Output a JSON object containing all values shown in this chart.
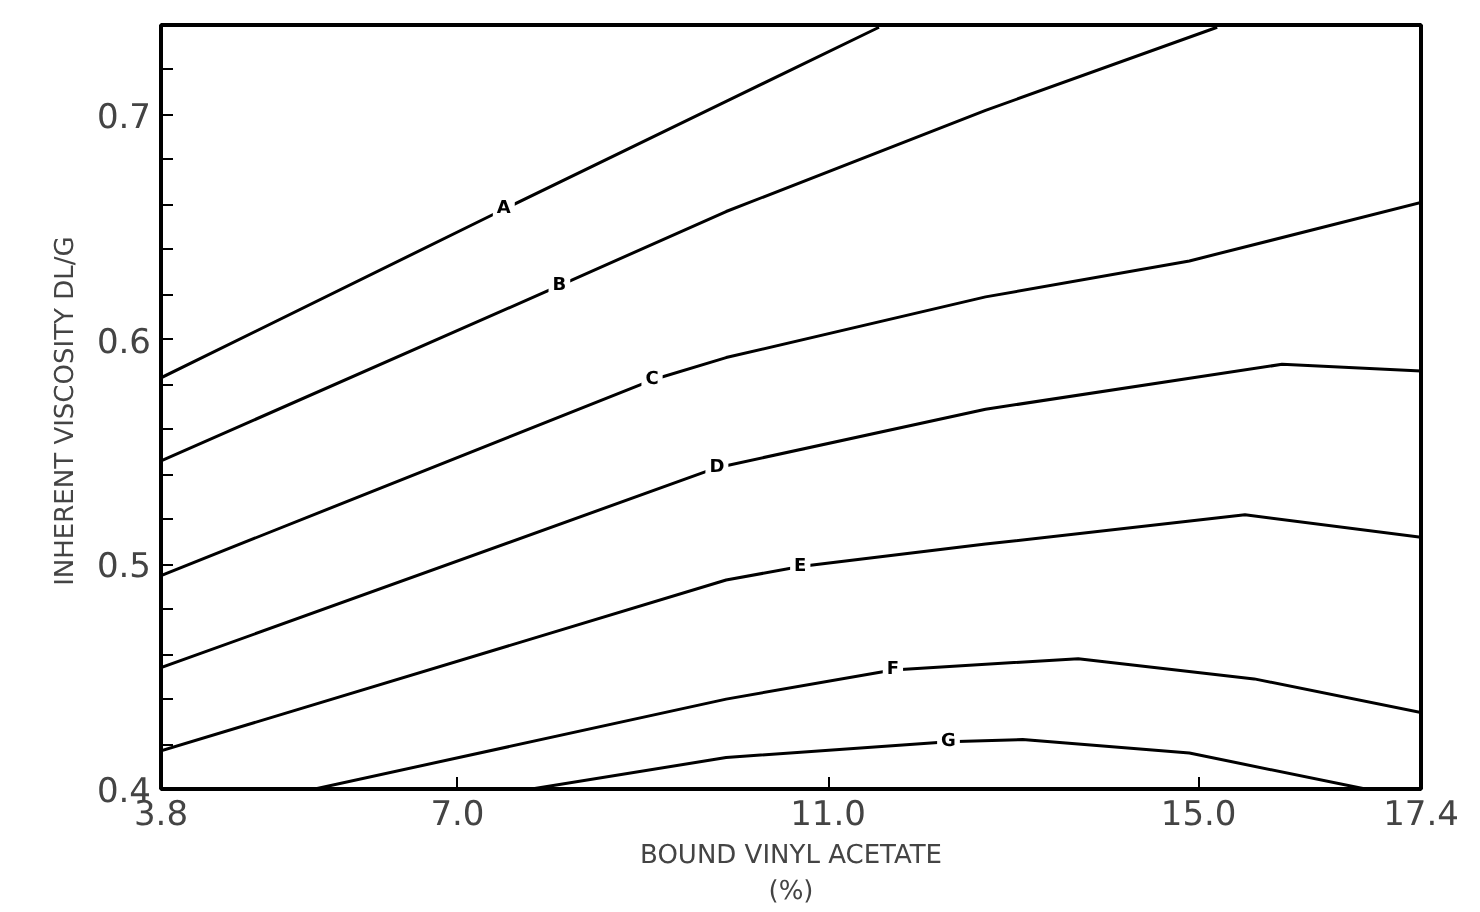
{
  "chart_data": {
    "type": "line",
    "xlabel": "BOUND VINYL ACETATE\n(%)",
    "ylabel": "INHERENT VISCOSITY  DL/G",
    "xlim": [
      3.8,
      17.4
    ],
    "ylim": [
      0.4,
      0.74
    ],
    "xticks": [
      3.8,
      {
        "value": 7,
        "label": "7.0"
      },
      {
        "value": 11,
        "label": "11.0"
      },
      {
        "value": 15,
        "label": "15.0"
      },
      17.4
    ],
    "yticks": [
      0.4,
      {
        "value": 0.42,
        "label": null
      },
      {
        "value": 0.44,
        "label": null
      },
      {
        "value": 0.46,
        "label": null
      },
      {
        "value": 0.48,
        "label": null
      },
      0.5,
      {
        "value": 0.52,
        "label": null
      },
      {
        "value": 0.54,
        "label": null
      },
      {
        "value": 0.56,
        "label": null
      },
      {
        "value": 0.58,
        "label": null
      },
      0.6,
      {
        "value": 0.62,
        "label": null
      },
      {
        "value": 0.64,
        "label": null
      },
      {
        "value": 0.66,
        "label": null
      },
      {
        "value": 0.68,
        "label": null
      },
      0.7,
      {
        "value": 0.72,
        "label": null
      }
    ],
    "grid": false,
    "marker": "none",
    "line_style": "solid",
    "series": [
      {
        "color": "#000000",
        "x": [
          3.8,
          7.5,
          9.9,
          11.55
        ],
        "values": [
          0.583,
          0.658,
          0.706,
          0.739
        ]
      },
      {
        "color": "#000000",
        "x": [
          3.8,
          8.1,
          9.9,
          12.7,
          15.2
        ],
        "values": [
          0.546,
          0.624,
          0.657,
          0.702,
          0.739
        ]
      },
      {
        "color": "#000000",
        "x": [
          3.8,
          9.1,
          9.9,
          12.7,
          14.9,
          17.4
        ],
        "values": [
          0.495,
          0.582,
          0.592,
          0.619,
          0.635,
          0.661
        ]
      },
      {
        "color": "#000000",
        "x": [
          3.8,
          9.8,
          12.7,
          15.9,
          17.4
        ],
        "values": [
          0.454,
          0.543,
          0.569,
          0.589,
          0.586
        ]
      },
      {
        "color": "#000000",
        "x": [
          3.8,
          9.9,
          10.7,
          12.7,
          15.5,
          17.4
        ],
        "values": [
          0.417,
          0.493,
          0.499,
          0.509,
          0.522,
          0.512
        ]
      },
      {
        "color": "#000000",
        "x": [
          5.46,
          9.9,
          11.7,
          13.7,
          15.6,
          17.4
        ],
        "values": [
          0.4,
          0.44,
          0.453,
          0.458,
          0.449,
          0.434
        ]
      },
      {
        "color": "#000000",
        "x": [
          7.8,
          9.9,
          12.3,
          13.1,
          14.9,
          16.8
        ],
        "values": [
          0.4,
          0.414,
          0.421,
          0.422,
          0.416,
          0.4
        ]
      }
    ],
    "annotations": [
      {
        "text": "A",
        "x": 7.5,
        "y": 0.658
      },
      {
        "text": "B",
        "x": 8.1,
        "y": 0.624
      },
      {
        "text": "C",
        "x": 9.1,
        "y": 0.582
      },
      {
        "text": "D",
        "x": 9.8,
        "y": 0.543
      },
      {
        "text": "E",
        "x": 10.7,
        "y": 0.499
      },
      {
        "text": "F",
        "x": 11.7,
        "y": 0.453
      },
      {
        "text": "G",
        "x": 12.3,
        "y": 0.421
      }
    ]
  }
}
